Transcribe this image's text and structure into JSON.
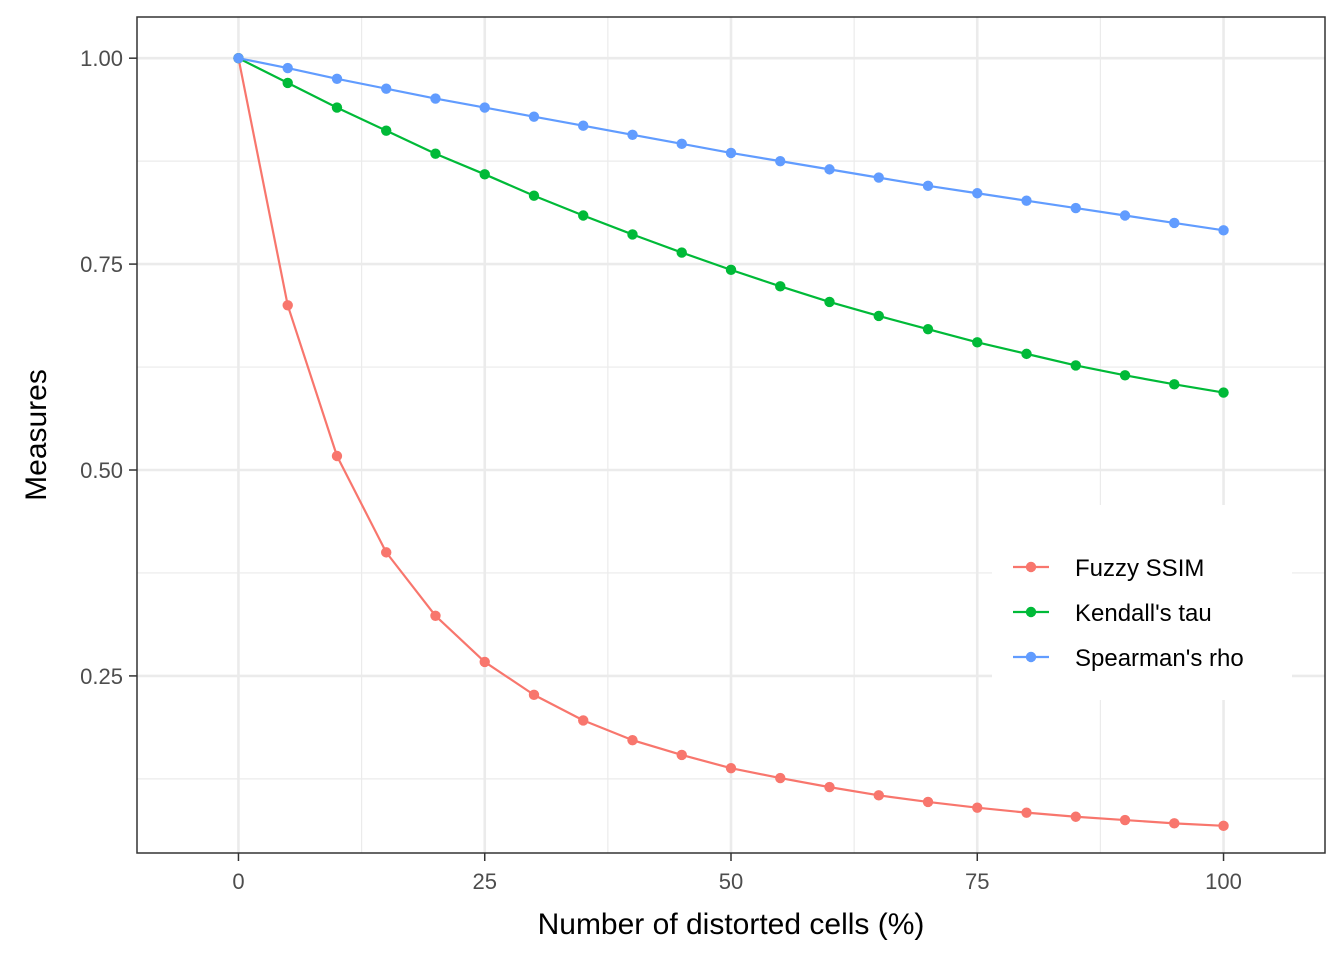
{
  "chart_data": {
    "type": "line",
    "xlabel": "Number of distorted cells (%)",
    "ylabel": "Measures",
    "xlim": [
      -10.3,
      110.3
    ],
    "ylim": [
      0.035,
      1.05
    ],
    "x_ticks": [
      0,
      25,
      50,
      75,
      100
    ],
    "x_tick_labels": [
      "0",
      "25",
      "50",
      "75",
      "100"
    ],
    "y_ticks": [
      0.25,
      0.5,
      0.75,
      1.0
    ],
    "y_tick_labels": [
      "0.25",
      "0.50",
      "0.75",
      "1.00"
    ],
    "grid": true,
    "legend_position": "right",
    "x": [
      0,
      5,
      10,
      15,
      20,
      25,
      30,
      35,
      40,
      45,
      50,
      55,
      60,
      65,
      70,
      75,
      80,
      85,
      90,
      95,
      100
    ],
    "series": [
      {
        "name": "Fuzzy SSIM",
        "color": "#F8766D",
        "values": [
          1.0,
          0.7,
          0.517,
          0.4,
          0.323,
          0.267,
          0.227,
          0.196,
          0.172,
          0.154,
          0.138,
          0.126,
          0.115,
          0.105,
          0.097,
          0.09,
          0.084,
          0.079,
          0.075,
          0.071,
          0.068
        ]
      },
      {
        "name": "Kendall's tau",
        "color": "#00BA38",
        "values": [
          1.0,
          0.97,
          0.94,
          0.912,
          0.884,
          0.859,
          0.833,
          0.809,
          0.786,
          0.764,
          0.743,
          0.723,
          0.704,
          0.687,
          0.671,
          0.655,
          0.641,
          0.627,
          0.615,
          0.604,
          0.594
        ]
      },
      {
        "name": "Spearman's rho",
        "color": "#619CFF",
        "values": [
          1.0,
          0.988,
          0.975,
          0.963,
          0.951,
          0.94,
          0.929,
          0.918,
          0.907,
          0.896,
          0.885,
          0.875,
          0.865,
          0.855,
          0.845,
          0.836,
          0.827,
          0.818,
          0.809,
          0.8,
          0.791
        ]
      }
    ]
  }
}
